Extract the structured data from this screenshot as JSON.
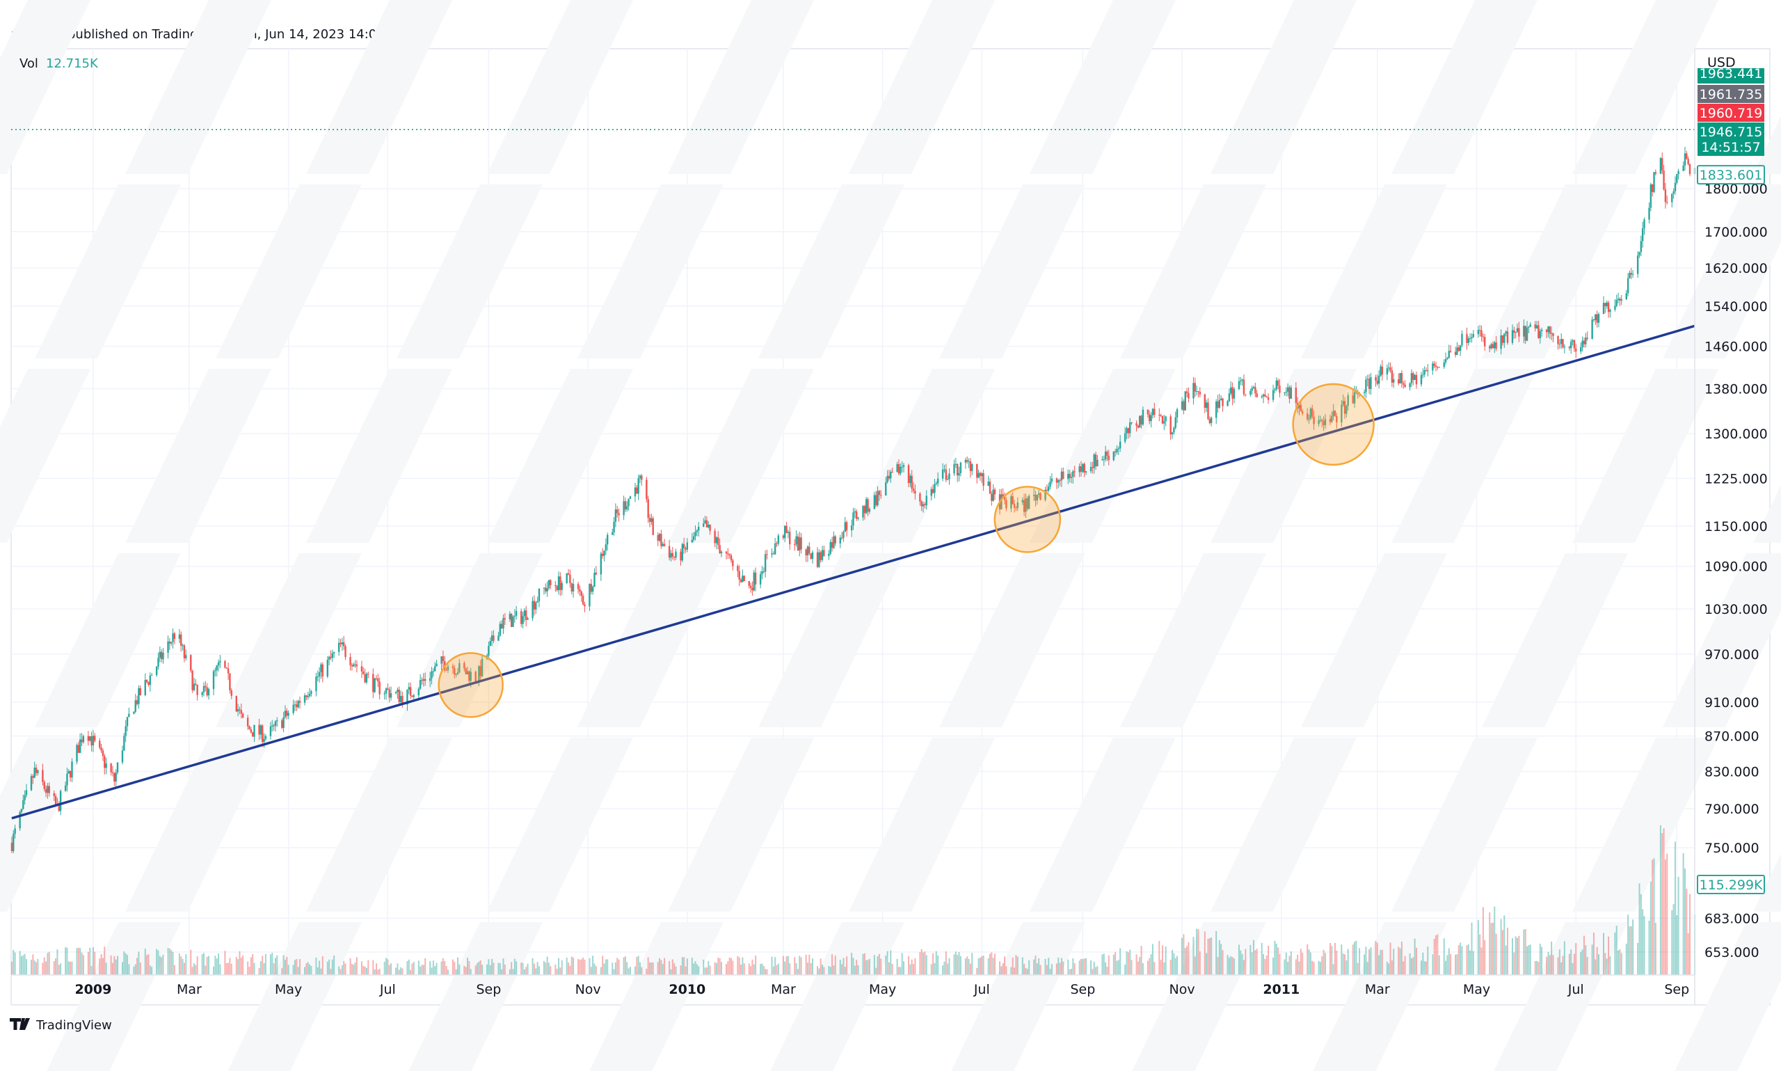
{
  "header": {
    "published": "puprime published on TradingView.com, Jun 14, 2023 14:08 UTC+8",
    "vol_label": "Vol",
    "vol_value": "12.715K"
  },
  "footer": {
    "brand": "TradingView"
  },
  "colors": {
    "up": "#26a69a",
    "down": "#ef5350",
    "trendline": "#1f3a93",
    "highlight_circle": "#f7a535",
    "grid": "#f0f3fa",
    "badge_green": "#089981",
    "badge_gray": "#6a6d78",
    "badge_red": "#f23645"
  },
  "price_axis": {
    "currency": "USD",
    "badges": [
      {
        "label": "1963.441",
        "kind": "green",
        "partial": true
      },
      {
        "label": "1961.735",
        "kind": "gray"
      },
      {
        "label": "1960.719",
        "kind": "red"
      },
      {
        "label": "1946.715",
        "sub": "14:51:57",
        "kind": "green"
      },
      {
        "label": "1833.601",
        "kind": "outline"
      }
    ],
    "volume_badge": "115.299K"
  },
  "chart_data": {
    "type": "candlestick",
    "y_scale": "log",
    "grid": true,
    "y_ticks": [
      "1800.000",
      "1700.000",
      "1620.000",
      "1540.000",
      "1460.000",
      "1380.000",
      "1300.000",
      "1225.000",
      "1150.000",
      "1090.000",
      "1030.000",
      "970.000",
      "910.000",
      "870.000",
      "830.000",
      "790.000",
      "750.000",
      "683.000",
      "653.000"
    ],
    "x_ticks": [
      {
        "label": "2009",
        "date": "2009-01-01",
        "bold": true
      },
      {
        "label": "Mar",
        "date": "2009-03-01"
      },
      {
        "label": "May",
        "date": "2009-05-01"
      },
      {
        "label": "Jul",
        "date": "2009-07-01"
      },
      {
        "label": "Sep",
        "date": "2009-09-01"
      },
      {
        "label": "Nov",
        "date": "2009-11-01"
      },
      {
        "label": "2010",
        "date": "2010-01-01",
        "bold": true
      },
      {
        "label": "Mar",
        "date": "2010-03-01"
      },
      {
        "label": "May",
        "date": "2010-05-01"
      },
      {
        "label": "Jul",
        "date": "2010-07-01"
      },
      {
        "label": "Sep",
        "date": "2010-09-01"
      },
      {
        "label": "Nov",
        "date": "2010-11-01"
      },
      {
        "label": "2011",
        "date": "2011-01-01",
        "bold": true
      },
      {
        "label": "Mar",
        "date": "2011-03-01"
      },
      {
        "label": "May",
        "date": "2011-05-01"
      },
      {
        "label": "Jul",
        "date": "2011-07-01"
      },
      {
        "label": "Sep",
        "date": "2011-09-01"
      }
    ],
    "price_path": [
      [
        "2008-11-12",
        755
      ],
      [
        "2008-11-26",
        830
      ],
      [
        "2008-12-10",
        790
      ],
      [
        "2008-12-27",
        880
      ],
      [
        "2009-01-14",
        820
      ],
      [
        "2009-01-24",
        900
      ],
      [
        "2009-02-21",
        1000
      ],
      [
        "2009-03-07",
        910
      ],
      [
        "2009-03-21",
        960
      ],
      [
        "2009-04-04",
        880
      ],
      [
        "2009-04-18",
        870
      ],
      [
        "2009-05-05",
        905
      ],
      [
        "2009-06-02",
        980
      ],
      [
        "2009-06-23",
        930
      ],
      [
        "2009-07-11",
        915
      ],
      [
        "2009-08-04",
        960
      ],
      [
        "2009-08-25",
        940
      ],
      [
        "2009-09-08",
        1010
      ],
      [
        "2009-09-22",
        1020
      ],
      [
        "2009-10-06",
        1060
      ],
      [
        "2009-10-20",
        1070
      ],
      [
        "2009-10-30",
        1040
      ],
      [
        "2009-11-17",
        1160
      ],
      [
        "2009-12-03",
        1220
      ],
      [
        "2009-12-11",
        1140
      ],
      [
        "2009-12-25",
        1100
      ],
      [
        "2010-01-12",
        1150
      ],
      [
        "2010-01-29",
        1090
      ],
      [
        "2010-02-08",
        1060
      ],
      [
        "2010-03-01",
        1140
      ],
      [
        "2010-03-22",
        1100
      ],
      [
        "2010-04-12",
        1160
      ],
      [
        "2010-04-26",
        1190
      ],
      [
        "2010-05-14",
        1250
      ],
      [
        "2010-05-24",
        1180
      ],
      [
        "2010-06-07",
        1230
      ],
      [
        "2010-06-25",
        1250
      ],
      [
        "2010-07-09",
        1190
      ],
      [
        "2010-07-26",
        1180
      ],
      [
        "2010-08-09",
        1210
      ],
      [
        "2010-08-30",
        1240
      ],
      [
        "2010-09-20",
        1270
      ],
      [
        "2010-10-04",
        1320
      ],
      [
        "2010-10-14",
        1340
      ],
      [
        "2010-10-25",
        1310
      ],
      [
        "2010-11-08",
        1390
      ],
      [
        "2010-11-18",
        1330
      ],
      [
        "2010-12-06",
        1390
      ],
      [
        "2010-12-20",
        1360
      ],
      [
        "2011-01-02",
        1390
      ],
      [
        "2011-01-16",
        1340
      ],
      [
        "2011-01-27",
        1310
      ],
      [
        "2011-02-13",
        1360
      ],
      [
        "2011-03-03",
        1410
      ],
      [
        "2011-03-20",
        1390
      ],
      [
        "2011-04-10",
        1430
      ],
      [
        "2011-04-30",
        1500
      ],
      [
        "2011-05-08",
        1450
      ],
      [
        "2011-05-22",
        1480
      ],
      [
        "2011-06-05",
        1490
      ],
      [
        "2011-06-19",
        1480
      ],
      [
        "2011-07-02",
        1450
      ],
      [
        "2011-07-17",
        1530
      ],
      [
        "2011-07-31",
        1570
      ],
      [
        "2011-08-10",
        1680
      ],
      [
        "2011-08-21",
        1890
      ],
      [
        "2011-08-26",
        1750
      ],
      [
        "2011-09-04",
        1880
      ],
      [
        "2011-09-12",
        1833.601
      ]
    ],
    "volume_path_k": [
      [
        "2008-11-12",
        25
      ],
      [
        "2009-03-01",
        22
      ],
      [
        "2009-07-01",
        14
      ],
      [
        "2009-11-01",
        16
      ],
      [
        "2010-03-01",
        16
      ],
      [
        "2010-06-01",
        22
      ],
      [
        "2010-09-01",
        14
      ],
      [
        "2010-11-08",
        40
      ],
      [
        "2011-01-15",
        25
      ],
      [
        "2011-04-20",
        35
      ],
      [
        "2011-05-05",
        70
      ],
      [
        "2011-06-15",
        28
      ],
      [
        "2011-08-01",
        45
      ],
      [
        "2011-08-20",
        140
      ],
      [
        "2011-09-01",
        110
      ],
      [
        "2011-09-12",
        115.299
      ]
    ],
    "trendline": [
      [
        "2008-11-12",
        780
      ],
      [
        "2011-09-12",
        1500
      ]
    ],
    "highlights": [
      {
        "date": "2009-08-21",
        "price": 931
      },
      {
        "date": "2010-07-29",
        "price": 1160
      },
      {
        "date": "2011-02-02",
        "price": 1316
      }
    ],
    "last_price_line": 1946.715
  }
}
